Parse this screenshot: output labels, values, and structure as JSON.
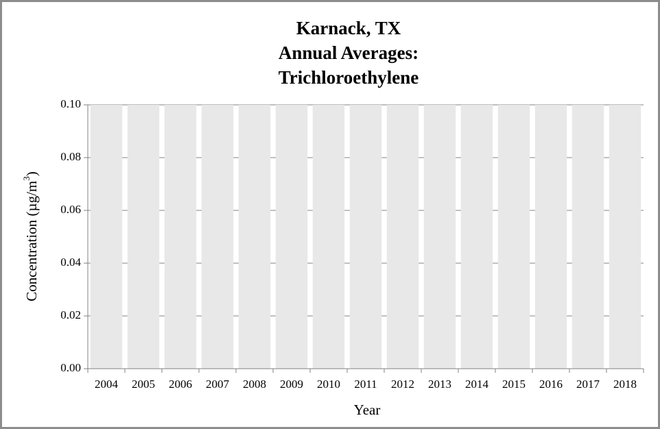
{
  "chart_data": {
    "type": "bar",
    "title": [
      "Karnack, TX",
      "Annual Averages:",
      "Trichloroethylene"
    ],
    "xlabel": "Year",
    "ylabel": {
      "text": "Concentration (µg/m",
      "sup": "3",
      "end": ")"
    },
    "categories": [
      "2004",
      "2005",
      "2006",
      "2007",
      "2008",
      "2009",
      "2010",
      "2011",
      "2012",
      "2013",
      "2014",
      "2015",
      "2016",
      "2017",
      "2018"
    ],
    "values": [
      0.1,
      0.1,
      0.1,
      0.1,
      0.1,
      0.1,
      0.1,
      0.1,
      0.1,
      0.1,
      0.1,
      0.1,
      0.1,
      0.1,
      0.1
    ],
    "color": "#e8e8e8",
    "ylim": [
      0,
      0.1
    ],
    "yticks": [
      {
        "value": 0,
        "label": "0.00"
      },
      {
        "value": 0.02,
        "label": "0.02"
      },
      {
        "value": 0.04,
        "label": "0.04"
      },
      {
        "value": 0.06,
        "label": "0.06"
      },
      {
        "value": 0.08,
        "label": "0.08"
      },
      {
        "value": 0.1,
        "label": "0.10"
      }
    ],
    "grid": true
  }
}
